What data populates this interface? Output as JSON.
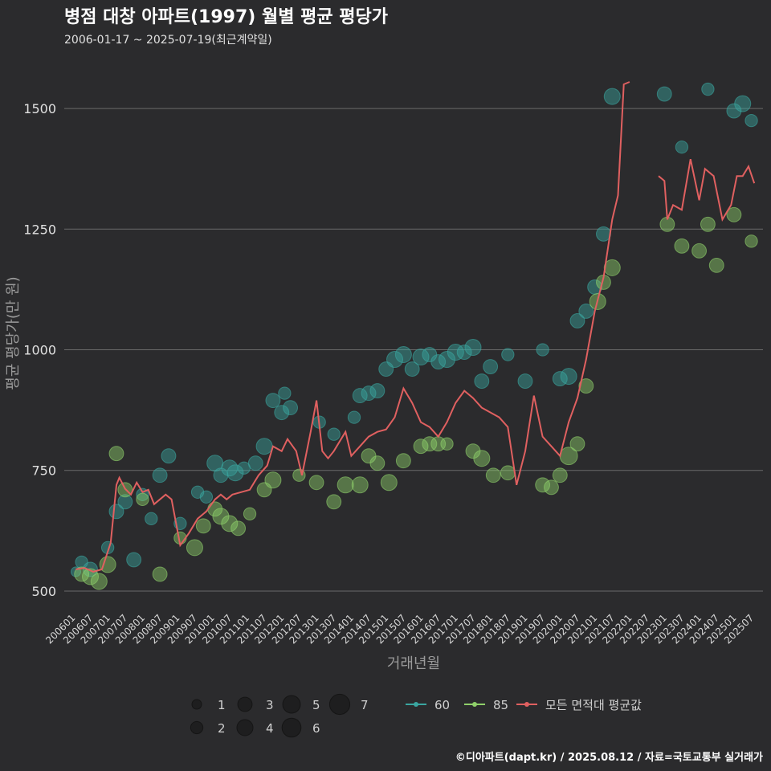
{
  "chart_data": {
    "type": "scatter",
    "title": "병점 대창 아파트(1997) 월별 평균 평당가",
    "subtitle": "2006-01-17 ~ 2025-07-19(최근계약일)",
    "xlabel": "거래년월",
    "ylabel": "평균 평당가(만 원)",
    "ylim": [
      460,
      1600
    ],
    "xlim": [
      "2005-09",
      "2025-10"
    ],
    "yticks": [
      500,
      750,
      1000,
      1250,
      1500
    ],
    "xticks": [
      "200601",
      "200607",
      "200701",
      "200707",
      "200801",
      "200807",
      "200901",
      "200907",
      "201001",
      "201007",
      "201101",
      "201107",
      "201201",
      "201207",
      "201301",
      "201307",
      "201401",
      "201407",
      "201501",
      "201507",
      "201601",
      "201607",
      "201701",
      "201707",
      "201801",
      "201807",
      "201901",
      "201907",
      "202001",
      "202007",
      "202101",
      "202107",
      "202201",
      "202207",
      "202301",
      "202307",
      "202401",
      "202407",
      "202501",
      "202507"
    ],
    "grid": "horizontal",
    "size_legend": {
      "labels": [
        "1",
        "2",
        "3",
        "4",
        "5",
        "6",
        "7"
      ],
      "values": [
        1,
        2,
        3,
        4,
        5,
        6,
        7
      ]
    },
    "series": [
      {
        "name": "60",
        "color": "#3aa6a0",
        "points": [
          {
            "x": "2006-01",
            "y": 540,
            "s": 1
          },
          {
            "x": "2006-03",
            "y": 560,
            "s": 2
          },
          {
            "x": "2006-06",
            "y": 545,
            "s": 3
          },
          {
            "x": "2006-12",
            "y": 590,
            "s": 2
          },
          {
            "x": "2007-03",
            "y": 665,
            "s": 3
          },
          {
            "x": "2007-06",
            "y": 685,
            "s": 3
          },
          {
            "x": "2007-09",
            "y": 565,
            "s": 3
          },
          {
            "x": "2007-12",
            "y": 700,
            "s": 2
          },
          {
            "x": "2008-03",
            "y": 650,
            "s": 2
          },
          {
            "x": "2008-06",
            "y": 740,
            "s": 3
          },
          {
            "x": "2008-09",
            "y": 780,
            "s": 3
          },
          {
            "x": "2009-01",
            "y": 640,
            "s": 2
          },
          {
            "x": "2009-07",
            "y": 705,
            "s": 2
          },
          {
            "x": "2009-10",
            "y": 695,
            "s": 2
          },
          {
            "x": "2010-01",
            "y": 765,
            "s": 4
          },
          {
            "x": "2010-03",
            "y": 740,
            "s": 3
          },
          {
            "x": "2010-06",
            "y": 755,
            "s": 4
          },
          {
            "x": "2010-08",
            "y": 745,
            "s": 4
          },
          {
            "x": "2010-11",
            "y": 755,
            "s": 2
          },
          {
            "x": "2011-03",
            "y": 765,
            "s": 3
          },
          {
            "x": "2011-06",
            "y": 800,
            "s": 4
          },
          {
            "x": "2011-09",
            "y": 895,
            "s": 3
          },
          {
            "x": "2011-12",
            "y": 870,
            "s": 3
          },
          {
            "x": "2012-01",
            "y": 910,
            "s": 2
          },
          {
            "x": "2012-03",
            "y": 880,
            "s": 3
          },
          {
            "x": "2013-01",
            "y": 850,
            "s": 2
          },
          {
            "x": "2013-06",
            "y": 825,
            "s": 2
          },
          {
            "x": "2014-01",
            "y": 860,
            "s": 2
          },
          {
            "x": "2014-03",
            "y": 905,
            "s": 3
          },
          {
            "x": "2014-06",
            "y": 910,
            "s": 3
          },
          {
            "x": "2014-09",
            "y": 915,
            "s": 3
          },
          {
            "x": "2014-12",
            "y": 960,
            "s": 3
          },
          {
            "x": "2015-03",
            "y": 980,
            "s": 4
          },
          {
            "x": "2015-06",
            "y": 990,
            "s": 4
          },
          {
            "x": "2015-09",
            "y": 960,
            "s": 3
          },
          {
            "x": "2015-12",
            "y": 985,
            "s": 4
          },
          {
            "x": "2016-03",
            "y": 990,
            "s": 3
          },
          {
            "x": "2016-06",
            "y": 975,
            "s": 3
          },
          {
            "x": "2016-09",
            "y": 980,
            "s": 4
          },
          {
            "x": "2016-12",
            "y": 995,
            "s": 4
          },
          {
            "x": "2017-03",
            "y": 995,
            "s": 3
          },
          {
            "x": "2017-06",
            "y": 1005,
            "s": 4
          },
          {
            "x": "2017-09",
            "y": 935,
            "s": 3
          },
          {
            "x": "2017-12",
            "y": 965,
            "s": 3
          },
          {
            "x": "2018-06",
            "y": 990,
            "s": 2
          },
          {
            "x": "2018-12",
            "y": 935,
            "s": 3
          },
          {
            "x": "2019-06",
            "y": 1000,
            "s": 2
          },
          {
            "x": "2019-12",
            "y": 940,
            "s": 3
          },
          {
            "x": "2020-03",
            "y": 945,
            "s": 4
          },
          {
            "x": "2020-06",
            "y": 1060,
            "s": 3
          },
          {
            "x": "2020-09",
            "y": 1080,
            "s": 3
          },
          {
            "x": "2020-12",
            "y": 1130,
            "s": 3
          },
          {
            "x": "2021-03",
            "y": 1240,
            "s": 3
          },
          {
            "x": "2021-06",
            "y": 1525,
            "s": 4
          },
          {
            "x": "2022-12",
            "y": 1530,
            "s": 3
          },
          {
            "x": "2023-06",
            "y": 1420,
            "s": 2
          },
          {
            "x": "2024-03",
            "y": 1540,
            "s": 2
          },
          {
            "x": "2024-12",
            "y": 1495,
            "s": 3
          },
          {
            "x": "2025-03",
            "y": 1510,
            "s": 4
          },
          {
            "x": "2025-06",
            "y": 1475,
            "s": 2
          }
        ]
      },
      {
        "name": "85",
        "color": "#8fd06a",
        "points": [
          {
            "x": "2006-03",
            "y": 535,
            "s": 3
          },
          {
            "x": "2006-06",
            "y": 530,
            "s": 4
          },
          {
            "x": "2006-09",
            "y": 520,
            "s": 4
          },
          {
            "x": "2006-12",
            "y": 555,
            "s": 4
          },
          {
            "x": "2007-03",
            "y": 785,
            "s": 3
          },
          {
            "x": "2007-06",
            "y": 710,
            "s": 3
          },
          {
            "x": "2007-12",
            "y": 690,
            "s": 2
          },
          {
            "x": "2008-06",
            "y": 535,
            "s": 3
          },
          {
            "x": "2009-01",
            "y": 610,
            "s": 2
          },
          {
            "x": "2009-06",
            "y": 590,
            "s": 4
          },
          {
            "x": "2009-09",
            "y": 635,
            "s": 3
          },
          {
            "x": "2010-01",
            "y": 670,
            "s": 3
          },
          {
            "x": "2010-03",
            "y": 655,
            "s": 4
          },
          {
            "x": "2010-06",
            "y": 640,
            "s": 4
          },
          {
            "x": "2010-09",
            "y": 630,
            "s": 3
          },
          {
            "x": "2011-01",
            "y": 660,
            "s": 2
          },
          {
            "x": "2011-06",
            "y": 710,
            "s": 3
          },
          {
            "x": "2011-09",
            "y": 730,
            "s": 4
          },
          {
            "x": "2012-06",
            "y": 740,
            "s": 2
          },
          {
            "x": "2012-12",
            "y": 725,
            "s": 3
          },
          {
            "x": "2013-06",
            "y": 685,
            "s": 3
          },
          {
            "x": "2013-10",
            "y": 720,
            "s": 4
          },
          {
            "x": "2014-03",
            "y": 720,
            "s": 4
          },
          {
            "x": "2014-06",
            "y": 780,
            "s": 3
          },
          {
            "x": "2014-09",
            "y": 765,
            "s": 3
          },
          {
            "x": "2015-01",
            "y": 725,
            "s": 4
          },
          {
            "x": "2015-06",
            "y": 770,
            "s": 3
          },
          {
            "x": "2015-12",
            "y": 800,
            "s": 3
          },
          {
            "x": "2016-03",
            "y": 805,
            "s": 3
          },
          {
            "x": "2016-06",
            "y": 805,
            "s": 3
          },
          {
            "x": "2016-09",
            "y": 805,
            "s": 2
          },
          {
            "x": "2017-06",
            "y": 790,
            "s": 3
          },
          {
            "x": "2017-09",
            "y": 775,
            "s": 4
          },
          {
            "x": "2018-01",
            "y": 740,
            "s": 3
          },
          {
            "x": "2018-06",
            "y": 745,
            "s": 3
          },
          {
            "x": "2019-06",
            "y": 720,
            "s": 3
          },
          {
            "x": "2019-09",
            "y": 715,
            "s": 3
          },
          {
            "x": "2019-12",
            "y": 740,
            "s": 3
          },
          {
            "x": "2020-03",
            "y": 780,
            "s": 5
          },
          {
            "x": "2020-06",
            "y": 805,
            "s": 3
          },
          {
            "x": "2020-09",
            "y": 925,
            "s": 3
          },
          {
            "x": "2021-01",
            "y": 1100,
            "s": 4
          },
          {
            "x": "2021-03",
            "y": 1140,
            "s": 3
          },
          {
            "x": "2021-06",
            "y": 1170,
            "s": 4
          },
          {
            "x": "2023-01",
            "y": 1260,
            "s": 3
          },
          {
            "x": "2023-06",
            "y": 1215,
            "s": 3
          },
          {
            "x": "2023-12",
            "y": 1205,
            "s": 3
          },
          {
            "x": "2024-03",
            "y": 1260,
            "s": 3
          },
          {
            "x": "2024-06",
            "y": 1175,
            "s": 3
          },
          {
            "x": "2024-12",
            "y": 1280,
            "s": 3
          },
          {
            "x": "2025-06",
            "y": 1225,
            "s": 2
          }
        ]
      },
      {
        "name": "모든 면적대 평균값",
        "color": "#e06060",
        "line": [
          [
            "2006-01",
            545
          ],
          [
            "2006-04",
            548
          ],
          [
            "2006-07",
            540
          ],
          [
            "2006-10",
            545
          ],
          [
            "2007-01",
            600
          ],
          [
            "2007-03",
            720
          ],
          [
            "2007-04",
            735
          ],
          [
            "2007-06",
            712
          ],
          [
            "2007-08",
            700
          ],
          [
            "2007-10",
            725
          ],
          [
            "2007-12",
            705
          ],
          [
            "2008-02",
            710
          ],
          [
            "2008-04",
            680
          ],
          [
            "2008-06",
            690
          ],
          [
            "2008-08",
            700
          ],
          [
            "2008-10",
            690
          ],
          [
            "2009-01",
            595
          ],
          [
            "2009-04",
            620
          ],
          [
            "2009-07",
            650
          ],
          [
            "2009-10",
            665
          ],
          [
            "2010-01",
            690
          ],
          [
            "2010-03",
            700
          ],
          [
            "2010-05",
            690
          ],
          [
            "2010-07",
            700
          ],
          [
            "2010-10",
            705
          ],
          [
            "2011-01",
            710
          ],
          [
            "2011-04",
            740
          ],
          [
            "2011-07",
            760
          ],
          [
            "2011-09",
            800
          ],
          [
            "2011-12",
            790
          ],
          [
            "2012-02",
            815
          ],
          [
            "2012-05",
            790
          ],
          [
            "2012-07",
            740
          ],
          [
            "2012-10",
            830
          ],
          [
            "2012-12",
            895
          ],
          [
            "2013-02",
            790
          ],
          [
            "2013-04",
            775
          ],
          [
            "2013-06",
            790
          ],
          [
            "2013-08",
            810
          ],
          [
            "2013-10",
            830
          ],
          [
            "2013-12",
            780
          ],
          [
            "2014-03",
            800
          ],
          [
            "2014-06",
            820
          ],
          [
            "2014-09",
            830
          ],
          [
            "2014-12",
            835
          ],
          [
            "2015-03",
            860
          ],
          [
            "2015-06",
            920
          ],
          [
            "2015-09",
            890
          ],
          [
            "2015-12",
            850
          ],
          [
            "2016-03",
            840
          ],
          [
            "2016-06",
            820
          ],
          [
            "2016-09",
            850
          ],
          [
            "2016-12",
            890
          ],
          [
            "2017-03",
            915
          ],
          [
            "2017-06",
            900
          ],
          [
            "2017-09",
            880
          ],
          [
            "2017-12",
            870
          ],
          [
            "2018-03",
            860
          ],
          [
            "2018-06",
            840
          ],
          [
            "2018-09",
            720
          ],
          [
            "2018-12",
            790
          ],
          [
            "2019-03",
            905
          ],
          [
            "2019-06",
            820
          ],
          [
            "2019-09",
            800
          ],
          [
            "2019-12",
            780
          ],
          [
            "2020-03",
            850
          ],
          [
            "2020-06",
            900
          ],
          [
            "2020-09",
            980
          ],
          [
            "2020-12",
            1080
          ],
          [
            "2021-03",
            1150
          ],
          [
            "2021-06",
            1270
          ],
          [
            "2021-08",
            1320
          ],
          [
            "2021-10",
            1550
          ],
          [
            "2021-12",
            1555
          ],
          [
            "2022-06",
            null
          ],
          [
            "2022-10",
            1360
          ],
          [
            "2022-12",
            1350
          ],
          [
            "2023-01",
            1270
          ],
          [
            "2023-03",
            1300
          ],
          [
            "2023-06",
            1290
          ],
          [
            "2023-09",
            1395
          ],
          [
            "2023-12",
            1310
          ],
          [
            "2024-02",
            1375
          ],
          [
            "2024-05",
            1360
          ],
          [
            "2024-08",
            1270
          ],
          [
            "2024-11",
            1300
          ],
          [
            "2025-01",
            1360
          ],
          [
            "2025-03",
            1360
          ],
          [
            "2025-05",
            1380
          ],
          [
            "2025-07",
            1345
          ]
        ]
      }
    ]
  },
  "footer": {
    "credit": "©디아파트(dapt.kr) / 2025.08.12 / 자료=국토교통부 실거래가"
  }
}
